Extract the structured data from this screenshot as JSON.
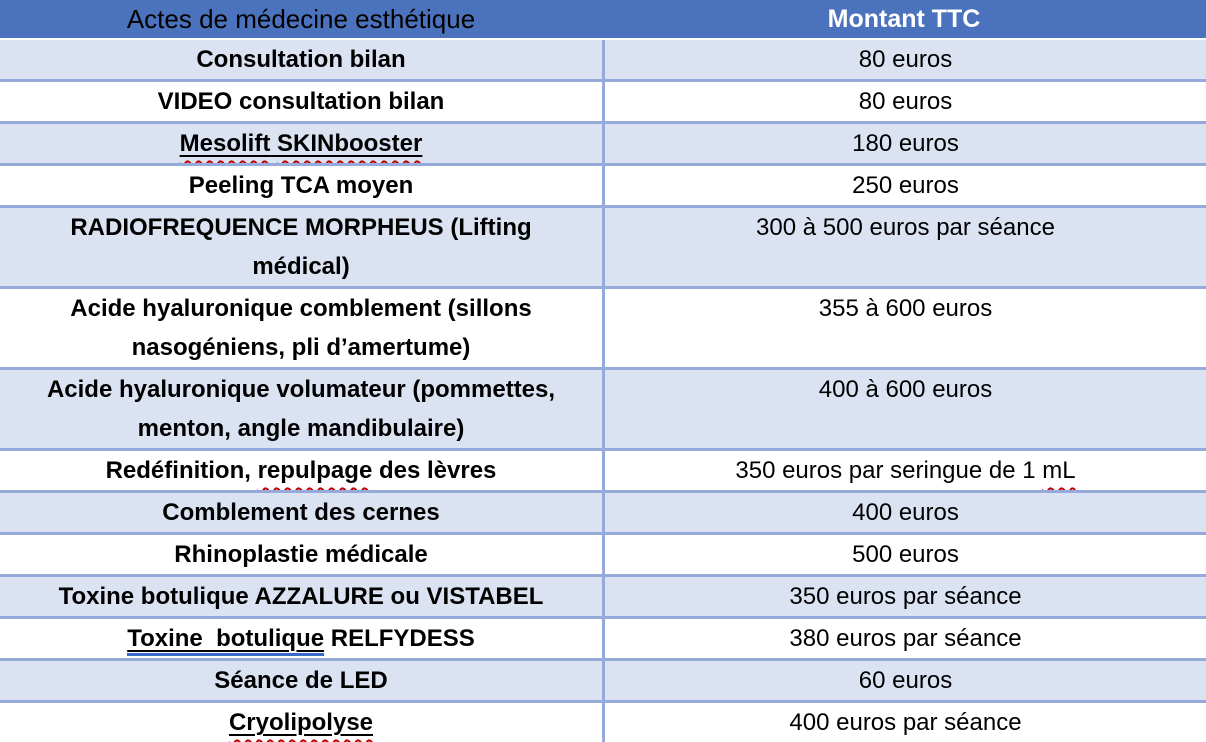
{
  "table": {
    "headers": [
      {
        "label": "Actes de médecine esthétique"
      },
      {
        "label": "Montant TTC"
      }
    ],
    "rows": [
      {
        "bg": "alt",
        "tall": false,
        "act": [
          {
            "t": "Consultation bilan"
          }
        ],
        "amount": [
          {
            "t": "80 euros"
          }
        ]
      },
      {
        "bg": "white",
        "tall": false,
        "act": [
          {
            "t": "VIDEO consultation bilan"
          }
        ],
        "amount": [
          {
            "t": "80 euros"
          }
        ]
      },
      {
        "bg": "alt",
        "tall": false,
        "act": [
          {
            "t": "Mesolift",
            "u": true,
            "sq": true
          },
          {
            "t": " ",
            "u": true
          },
          {
            "t": "SKINbooster",
            "u": true,
            "sq": true
          }
        ],
        "amount": [
          {
            "t": "180 euros"
          }
        ]
      },
      {
        "bg": "white",
        "tall": false,
        "act": [
          {
            "t": "Peeling TCA moyen"
          }
        ],
        "amount": [
          {
            "t": "250 euros"
          }
        ]
      },
      {
        "bg": "alt",
        "tall": true,
        "act": [
          {
            "t": "RADIOFREQUENCE MORPHEUS (Lifting médical)"
          }
        ],
        "amount": [
          {
            "t": "300 à 500 euros par séance"
          }
        ]
      },
      {
        "bg": "white",
        "tall": true,
        "act": [
          {
            "t": "Acide hyaluronique comblement (sillons nasogéniens, pli d’amertume)"
          }
        ],
        "amount": [
          {
            "t": "355 à 600 euros"
          }
        ]
      },
      {
        "bg": "alt",
        "tall": true,
        "act": [
          {
            "t": "Acide hyaluronique volumateur (pommettes, menton, angle mandibulaire)"
          }
        ],
        "amount": [
          {
            "t": "400 à 600 euros"
          }
        ]
      },
      {
        "bg": "white",
        "tall": false,
        "act": [
          {
            "t": "Redéfinition, "
          },
          {
            "t": "repulpage",
            "sq": true
          },
          {
            "t": " des lèvres"
          }
        ],
        "amount": [
          {
            "t": "350 euros par seringue de 1 "
          },
          {
            "t": "mL",
            "sq": true
          }
        ]
      },
      {
        "bg": "alt",
        "tall": false,
        "act": [
          {
            "t": "Comblement des cernes"
          }
        ],
        "amount": [
          {
            "t": "400 euros"
          }
        ]
      },
      {
        "bg": "white",
        "tall": false,
        "act": [
          {
            "t": "Rhinoplastie médicale"
          }
        ],
        "amount": [
          {
            "t": "500 euros"
          }
        ]
      },
      {
        "bg": "alt",
        "tall": false,
        "act": [
          {
            "t": "Toxine botulique AZZALURE ou VISTABEL"
          }
        ],
        "amount": [
          {
            "t": "350 euros par séance"
          }
        ]
      },
      {
        "bg": "white",
        "tall": false,
        "act": [
          {
            "t": "Toxine  botulique",
            "u": true,
            "gr": true
          },
          {
            "t": " RELFYDESS"
          }
        ],
        "amount": [
          {
            "t": "380 euros par séance"
          }
        ]
      },
      {
        "bg": "alt",
        "tall": false,
        "act": [
          {
            "t": "Séance de LED"
          }
        ],
        "amount": [
          {
            "t": "60 euros"
          }
        ]
      },
      {
        "bg": "white",
        "tall": false,
        "act": [
          {
            "t": "Cryolipolyse",
            "u": true,
            "sq": true
          }
        ],
        "amount": [
          {
            "t": "400 euros par séance"
          }
        ]
      }
    ]
  },
  "colors": {
    "header_bg": "#4b72bd",
    "alt_row_bg": "#dbe2f2",
    "row_bg": "#ffffff",
    "border": "#95a9da",
    "header_text": "#ffffff",
    "body_text": "#000000",
    "spellcheck_red": "#c00000",
    "grammar_blue": "#3b6bc8"
  }
}
